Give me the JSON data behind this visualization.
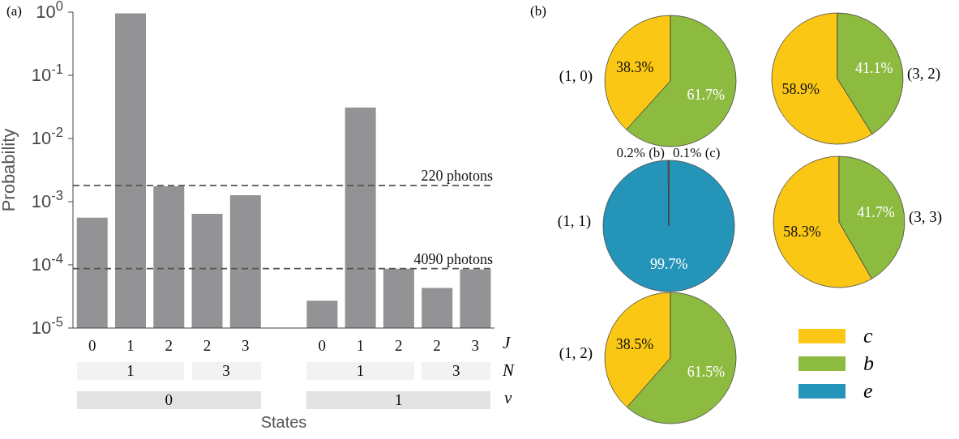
{
  "chart_data": [
    {
      "type": "bar",
      "title": "(a)",
      "xlabel": "States",
      "ylabel": "Probability",
      "categories": [
        "0",
        "1",
        "2",
        "2",
        "3",
        null,
        "0",
        "1",
        "2",
        "2",
        "3"
      ],
      "values": [
        0.00056,
        0.96,
        0.00175,
        0.00064,
        0.00127,
        null,
        2.7e-05,
        0.031,
        8.7e-05,
        4.3e-05,
        8.5e-05
      ],
      "color": "#939396",
      "log": "y",
      "ylim": [
        1e-05,
        1
      ],
      "yticks": [
        {
          "value": 1e-05,
          "label": "10$^{-5}$"
        },
        {
          "value": 0.0001,
          "label": "10$^{-4}$"
        },
        {
          "value": 0.001,
          "label": "10$^{-3}$"
        },
        {
          "value": 0.01,
          "label": "10$^{-2}$"
        },
        {
          "value": 0.1,
          "label": "10$^{-1}$"
        },
        {
          "value": 1,
          "label": "10$^{0}$"
        }
      ],
      "ref_lines": [
        {
          "axis": "y",
          "value": 0.0018,
          "label": "220 photons",
          "color": "#555555",
          "line_style": "dashed"
        },
        {
          "axis": "y",
          "value": 8.7e-05,
          "label": "4090 photons",
          "color": "#555555",
          "line_style": "dashed"
        }
      ],
      "annotations": [
        "J",
        "N",
        "v",
        "1",
        "3",
        "1",
        "3",
        "0",
        "1"
      ]
    },
    {
      "type": "pie",
      "title": "(1, 0)",
      "annotations": [
        "(b)"
      ],
      "categories": [
        "c",
        "b"
      ],
      "values": [
        38.3,
        61.7
      ],
      "colors": [
        "#fbc715",
        "#8cbb3f"
      ],
      "value_labels": [
        "38.3%",
        "61.7%"
      ],
      "legend": "bottom right"
    },
    {
      "type": "pie",
      "title": "(3, 2)",
      "categories": [
        null,
        null
      ],
      "values": [
        58.9,
        41.1
      ],
      "colors": [
        "#fbc715",
        "#8cbb3f"
      ],
      "value_labels": [
        "58.9%",
        "41.1%"
      ]
    },
    {
      "type": "pie",
      "title": "(1, 1)",
      "categories": [
        null,
        "e",
        null
      ],
      "values": [
        0.2,
        99.7,
        0.1
      ],
      "colors": [
        "#8cbb3f",
        "#2494b8",
        "#fbc715"
      ],
      "value_labels": [
        "0.2% (b)",
        "99.7%",
        "0.1% (c)"
      ],
      "legend": "bottom right"
    },
    {
      "type": "pie",
      "title": "(3, 3)",
      "categories": [
        null,
        null
      ],
      "values": [
        58.3,
        41.7
      ],
      "colors": [
        "#fbc715",
        "#8cbb3f"
      ],
      "value_labels": [
        "58.3%",
        "41.7%"
      ]
    },
    {
      "type": "pie",
      "title": "(1, 2)",
      "categories": [
        null,
        null
      ],
      "values": [
        38.5,
        61.5
      ],
      "colors": [
        "#fbc715",
        "#8cbb3f"
      ],
      "value_labels": [
        "38.5%",
        "61.5%"
      ]
    }
  ]
}
